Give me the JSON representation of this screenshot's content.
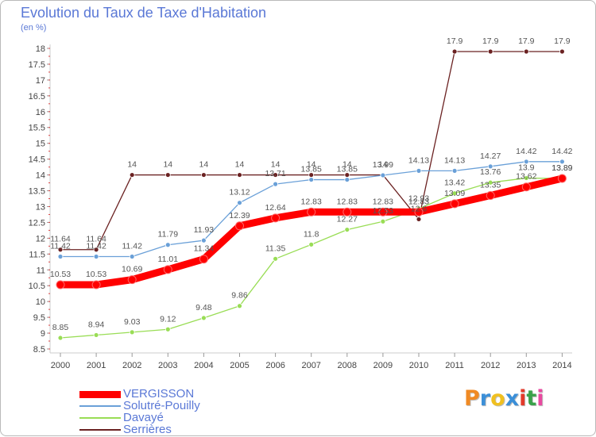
{
  "title": "Evolution du Taux de Taxe d'Habitation",
  "unit_label": "(en %)",
  "logo": {
    "text": "Proxiti",
    "colors": [
      "#f08a24",
      "#3b8fd8",
      "#f0c020",
      "#3b8fd8",
      "#e23a2a",
      "#3aa24a",
      "#e84aa0"
    ]
  },
  "chart_data": {
    "type": "line",
    "title": "Evolution du Taux de Taxe d'Habitation",
    "ylabel": "(en %)",
    "xlabel": "",
    "x": [
      "2000",
      "2001",
      "2002",
      "2003",
      "2004",
      "2005",
      "2006",
      "2007",
      "2008",
      "2009",
      "2010",
      "2011",
      "2012",
      "2013",
      "2014"
    ],
    "ylim": [
      8.5,
      18
    ],
    "yticks": [
      "8.5",
      "9",
      "9.5",
      "10",
      "10.5",
      "11",
      "11.5",
      "12",
      "12.5",
      "13",
      "13.5",
      "14",
      "14.5",
      "15",
      "15.5",
      "16",
      "16.5",
      "17",
      "17.5",
      "18"
    ],
    "grid": false,
    "legend_position": "bottom-left",
    "series": [
      {
        "name": "VERGISSON",
        "color": "#ff0000",
        "values": [
          10.53,
          10.53,
          10.69,
          11.01,
          11.34,
          12.39,
          12.64,
          12.83,
          12.83,
          12.83,
          12.83,
          13.09,
          13.35,
          13.62,
          13.89
        ],
        "labels": [
          "10.53",
          "10.53",
          "10.69",
          "11.01",
          "11.34",
          "12.39",
          "12.64",
          "12.83",
          "12.83",
          "12.83",
          "12.83",
          "13.09",
          "13.35",
          "13.62",
          "13.89"
        ]
      },
      {
        "name": "Solutré-Pouilly",
        "color": "#6aa0d8",
        "values": [
          11.42,
          11.42,
          11.42,
          11.79,
          11.93,
          13.12,
          13.71,
          13.85,
          13.85,
          13.99,
          14.13,
          14.13,
          14.27,
          14.42,
          14.42
        ],
        "labels": [
          "11.42",
          "11.42",
          "11.42",
          "11.79",
          "11.93",
          "13.12",
          "13.71",
          "13.85",
          "13.85",
          "13.99",
          "14.13",
          "14.13",
          "14.27",
          "14.42",
          "14.42"
        ]
      },
      {
        "name": "Davayé",
        "color": "#99dd55",
        "values": [
          8.85,
          8.94,
          9.03,
          9.12,
          9.48,
          9.86,
          11.35,
          11.8,
          12.27,
          12.53,
          12.93,
          13.42,
          13.76,
          13.9,
          13.89
        ],
        "labels": [
          "8.85",
          "8.94",
          "9.03",
          "9.12",
          "9.48",
          "9.86",
          "11.35",
          "11.8",
          "12.27",
          "12.53",
          "12.93",
          "13.42",
          "13.76",
          "13.9",
          "13.89"
        ]
      },
      {
        "name": "Serrières",
        "color": "#6b2222",
        "values": [
          11.64,
          11.64,
          14,
          14,
          14,
          14,
          14,
          14,
          14,
          14,
          12.6,
          17.9,
          17.9,
          17.9,
          17.9
        ],
        "labels": [
          "11.64",
          "11.64",
          "14",
          "14",
          "14",
          "14",
          "14",
          "14",
          "14",
          "14",
          "12.6",
          "17.9",
          "17.9",
          "17.9",
          "17.9"
        ]
      }
    ]
  }
}
